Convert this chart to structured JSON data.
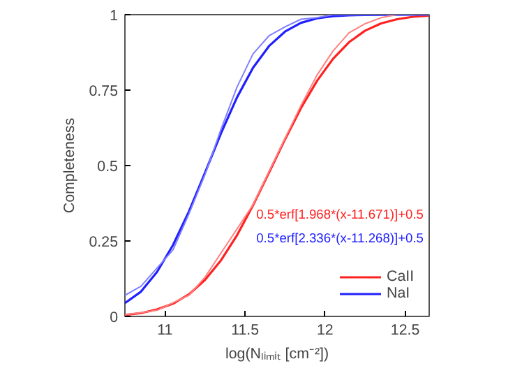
{
  "chart_data": {
    "type": "line",
    "xlabel": "log(Nₗᵢₘᵢₜ [cm⁻²])",
    "ylabel": "Completeness",
    "xlim": [
      10.75,
      12.65
    ],
    "xticks": [
      11,
      11.5,
      12,
      12.5
    ],
    "ylim": [
      0,
      1
    ],
    "yticks": [
      0,
      0.25,
      0.5,
      0.75,
      1
    ],
    "grid": false,
    "legend": "bottom right",
    "marker": "none",
    "line_style": "solid",
    "annotations": [
      "0.5*erf[1.968*(x-11.671)]+0.5",
      "0.5*erf[2.336*(x-11.268)]+0.5"
    ],
    "series": [
      {
        "name": "CaII",
        "color": "#ff2020",
        "x": [
          10.75,
          10.85,
          10.95,
          11.05,
          11.15,
          11.25,
          11.35,
          11.45,
          11.55,
          11.65,
          11.75,
          11.85,
          11.95,
          12.05,
          12.15,
          12.25,
          12.35,
          12.45,
          12.55,
          12.65
        ],
        "values": [
          0.005,
          0.011,
          0.023,
          0.042,
          0.073,
          0.121,
          0.186,
          0.269,
          0.368,
          0.477,
          0.587,
          0.691,
          0.781,
          0.854,
          0.909,
          0.947,
          0.971,
          0.985,
          0.993,
          0.997
        ]
      },
      {
        "name": "NaI",
        "color": "#2020ff",
        "x": [
          10.75,
          10.85,
          10.95,
          11.05,
          11.15,
          11.25,
          11.35,
          11.45,
          11.55,
          11.65,
          11.75,
          11.85,
          11.95,
          12.05,
          12.15,
          12.25,
          12.65
        ],
        "values": [
          0.044,
          0.082,
          0.147,
          0.236,
          0.348,
          0.476,
          0.607,
          0.726,
          0.824,
          0.896,
          0.944,
          0.973,
          0.988,
          0.995,
          0.998,
          0.999,
          1.0
        ]
      },
      {
        "color": "#ff8080",
        "x": [
          10.75,
          10.95,
          11.15,
          11.25,
          11.35,
          11.45,
          11.55,
          11.65,
          11.75,
          11.85,
          11.95,
          12.05,
          12.15,
          12.25,
          12.35,
          12.45,
          12.65
        ],
        "values": [
          0.005,
          0.02,
          0.07,
          0.13,
          0.21,
          0.29,
          0.37,
          0.48,
          0.59,
          0.7,
          0.8,
          0.88,
          0.94,
          0.97,
          0.99,
          1.0,
          1.0
        ]
      },
      {
        "color": "#8080ff",
        "x": [
          10.75,
          10.85,
          10.95,
          11.05,
          11.15,
          11.25,
          11.35,
          11.45,
          11.55,
          11.65,
          11.75,
          11.85,
          11.95,
          12.05,
          12.65
        ],
        "values": [
          0.07,
          0.1,
          0.16,
          0.22,
          0.34,
          0.47,
          0.62,
          0.76,
          0.87,
          0.93,
          0.96,
          0.985,
          0.99,
          1.0,
          1.0
        ]
      }
    ]
  }
}
